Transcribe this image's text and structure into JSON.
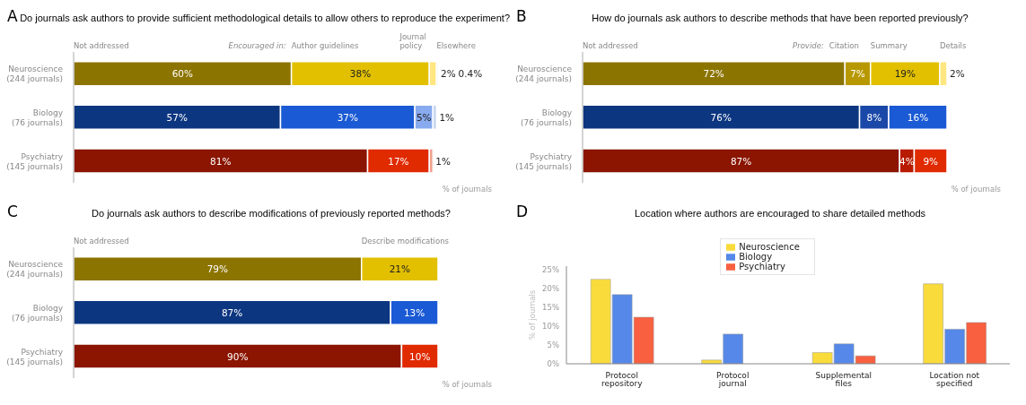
{
  "chart_data": [
    {
      "type": "bar",
      "orientation": "horizontal",
      "stacked": true,
      "title": "Do journals ask authors to provide sufficient methodological details to allow others to reproduce the experiment?",
      "xlabel": "% of journals",
      "annotations": [
        "A",
        "Encouraged in:"
      ],
      "categories": [
        "Neuroscience (244 journals)",
        "Biology (76 journals)",
        "Psychiatry (145 journals)"
      ],
      "series": [
        {
          "name": "Not addressed",
          "colors": [
            "#8c7400",
            "#0d3680",
            "#8b1500"
          ],
          "values": [
            60,
            57,
            81
          ],
          "value_labels": [
            "60%",
            "57%",
            "81%"
          ]
        },
        {
          "name": "Author guidelines",
          "colors": [
            "#e2c000",
            "#1a5ad4",
            "#e02a00"
          ],
          "values": [
            38,
            37,
            17
          ],
          "value_labels": [
            "38%",
            "37%",
            "17%"
          ]
        },
        {
          "name": "Journal policy",
          "colors": [
            "#ffe680",
            "#88aaee",
            "#f0a090"
          ],
          "values": [
            2,
            5,
            1
          ],
          "value_labels": [
            "2%",
            "5%",
            "1%"
          ]
        },
        {
          "name": "Elsewhere",
          "colors": [
            "#c8c8c8",
            "#c8d4f0",
            null
          ],
          "values": [
            0.4,
            1,
            null
          ],
          "value_labels": [
            "0.4%",
            "1%",
            null
          ]
        }
      ]
    },
    {
      "type": "bar",
      "orientation": "horizontal",
      "stacked": true,
      "title": "How do journals ask authors to describe methods that have been reported previously?",
      "xlabel": "% of journals",
      "annotations": [
        "B",
        "Provide:"
      ],
      "categories": [
        "Neuroscience (244 journals)",
        "Biology (76 journals)",
        "Psychiatry (145 journals)"
      ],
      "series": [
        {
          "name": "Not addressed",
          "colors": [
            "#8c7400",
            "#0d3680",
            "#8b1500"
          ],
          "values": [
            72,
            76,
            87
          ],
          "value_labels": [
            "72%",
            "76%",
            "87%"
          ]
        },
        {
          "name": "Citation",
          "colors": [
            "#b89800",
            "#1a48a8",
            "#b81a00"
          ],
          "values": [
            7,
            8,
            4
          ],
          "value_labels": [
            "7%",
            "8%",
            "4%"
          ]
        },
        {
          "name": "Summary",
          "colors": [
            "#e2c000",
            "#1a5ad4",
            "#e02a00"
          ],
          "values": [
            19,
            16,
            9
          ],
          "value_labels": [
            "19%",
            "16%",
            "9%"
          ]
        },
        {
          "name": "Details",
          "colors": [
            "#ffe680",
            null,
            null
          ],
          "values": [
            2,
            null,
            null
          ],
          "value_labels": [
            "2%",
            null,
            null
          ]
        }
      ]
    },
    {
      "type": "bar",
      "orientation": "horizontal",
      "stacked": true,
      "title": "Do journals ask authors to describe modifications of previously reported methods?",
      "xlabel": "% of journals",
      "annotations": [
        "C"
      ],
      "categories": [
        "Neuroscience (244 journals)",
        "Biology (76 journals)",
        "Psychiatry (145 journals)"
      ],
      "series": [
        {
          "name": "Not addressed",
          "colors": [
            "#8c7400",
            "#0d3680",
            "#8b1500"
          ],
          "values": [
            79,
            87,
            90
          ],
          "value_labels": [
            "79%",
            "87%",
            "90%"
          ]
        },
        {
          "name": "Describe modifications",
          "colors": [
            "#e2c000",
            "#1a5ad4",
            "#e02a00"
          ],
          "values": [
            21,
            13,
            10
          ],
          "value_labels": [
            "21%",
            "13%",
            "10%"
          ]
        }
      ]
    },
    {
      "type": "bar",
      "title": "Location where authors are encouraged to share detailed methods",
      "ylabel": "% of journals",
      "annotations": [
        "D"
      ],
      "legend": "top",
      "categories": [
        "Protocol repository",
        "Protocol journal",
        "Supplemental files",
        "Location not specified"
      ],
      "ylim": [
        0,
        26
      ],
      "yticks": [
        {
          "value": 0,
          "label": "0%"
        },
        {
          "value": 5,
          "label": "5%"
        },
        {
          "value": 10,
          "label": "10%"
        },
        {
          "value": 15,
          "label": "15%"
        },
        {
          "value": 20,
          "label": "20%"
        },
        {
          "value": 25,
          "label": "25%"
        }
      ],
      "series": [
        {
          "name": "Neuroscience",
          "color": "#f9dc3c",
          "values": [
            22.5,
            1,
            3,
            21.3
          ]
        },
        {
          "name": "Biology",
          "color": "#5588e8",
          "values": [
            18.4,
            7.9,
            5.3,
            9.2
          ]
        },
        {
          "name": "Psychiatry",
          "color": "#f86040",
          "values": [
            12.4,
            0,
            2.1,
            11
          ]
        }
      ]
    }
  ]
}
